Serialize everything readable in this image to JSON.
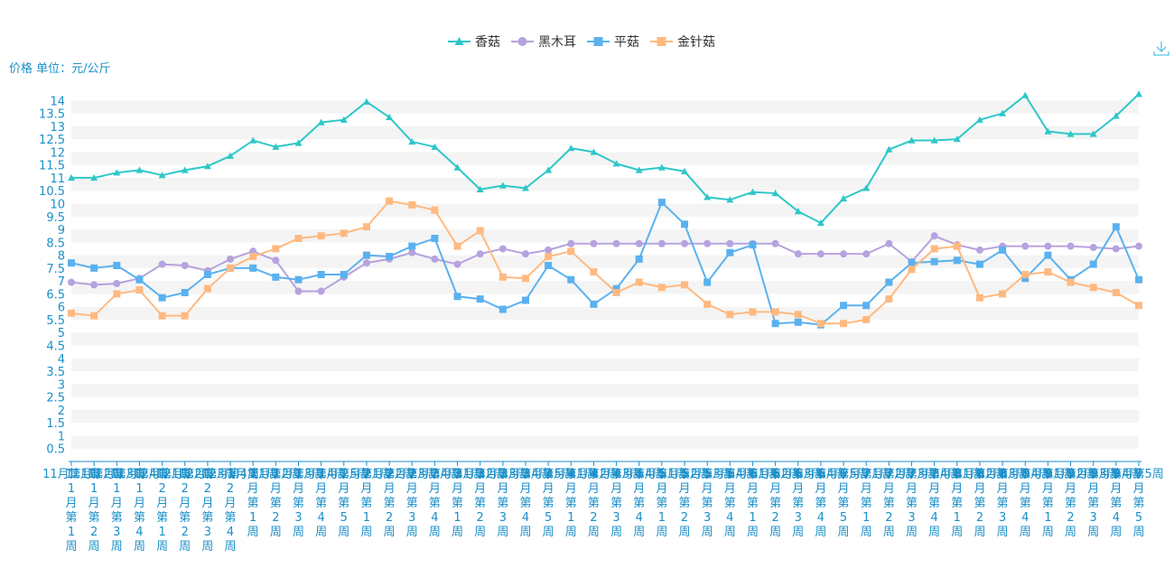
{
  "toolbar": {
    "download_icon": "download-icon"
  },
  "chart_data": {
    "type": "line",
    "ylabel": "价格 单位：元/公斤",
    "ylim": [
      0,
      14.5
    ],
    "y_ticks": [
      0.5,
      1,
      1.5,
      2,
      2.5,
      3,
      3.5,
      4,
      4.5,
      5,
      5.5,
      6,
      6.5,
      7,
      7.5,
      8,
      8.5,
      9,
      9.5,
      10,
      10.5,
      11,
      11.5,
      12,
      12.5,
      13,
      13.5,
      14
    ],
    "y_tick_labels": [
      "0.5",
      "1",
      "1.5",
      "2",
      "2.5",
      "3",
      "3.5",
      "4",
      "4.5",
      "5",
      "5.5",
      "6",
      "6.5",
      "7",
      "7.5",
      "8",
      "8.5",
      "9",
      "9.5",
      "10",
      "10.5",
      "11",
      "11.5",
      "12",
      "12.5",
      "13",
      "13.5",
      "14"
    ],
    "legend_position": "top-center",
    "grid": "alternating horizontal bands",
    "categories": [
      "11月第1周",
      "11月第2周",
      "11月第3周",
      "11月第4周",
      "12月第1周",
      "12月第2周",
      "12月第3周",
      "12月第4周",
      "1月第1周",
      "1月第2周",
      "1月第3周",
      "1月第4周",
      "1月第5周",
      "2月第1周",
      "2月第2周",
      "2月第3周",
      "2月第4周",
      "3月第1周",
      "3月第2周",
      "3月第3周",
      "3月第4周",
      "3月第5周",
      "4月第1周",
      "4月第2周",
      "4月第3周",
      "4月第4周",
      "5月第1周",
      "5月第2周",
      "5月第3周",
      "5月第4周",
      "6月第1周",
      "6月第2周",
      "6月第3周",
      "6月第4周",
      "6月第5周",
      "7月第1周",
      "7月第2周",
      "7月第3周",
      "7月第4周",
      "8月第1周",
      "8月第2周",
      "8月第3周",
      "8月第4周",
      "9月第1周",
      "9月第2周",
      "9月第3周",
      "9月第4周",
      "9月第5周"
    ],
    "series": [
      {
        "name": "香菇",
        "color": "#2ec7c9",
        "marker": "triangle",
        "values": [
          11,
          11,
          11.2,
          11.3,
          11.1,
          11.3,
          11.45,
          11.85,
          12.45,
          12.2,
          12.35,
          13.15,
          13.25,
          13.95,
          13.35,
          12.4,
          12.2,
          11.4,
          10.55,
          10.7,
          10.6,
          11.3,
          12.15,
          12,
          11.55,
          11.3,
          11.4,
          11.25,
          10.25,
          10.15,
          10.45,
          10.4,
          9.7,
          9.25,
          10.2,
          10.6,
          12.1,
          12.45,
          12.45,
          12.5,
          13.25,
          13.5,
          14.2,
          12.8,
          12.7,
          12.7,
          13.4,
          14.25
        ]
      },
      {
        "name": "黑木耳",
        "color": "#b6a2de",
        "marker": "circle",
        "values": [
          6.95,
          6.85,
          6.9,
          7.1,
          7.65,
          7.6,
          7.4,
          7.85,
          8.15,
          7.8,
          6.6,
          6.6,
          7.15,
          7.7,
          7.85,
          8.1,
          7.85,
          7.65,
          8.05,
          8.25,
          8.05,
          8.2,
          8.45,
          8.45,
          8.45,
          8.45,
          8.45,
          8.45,
          8.45,
          8.45,
          8.45,
          8.45,
          8.05,
          8.05,
          8.05,
          8.05,
          8.45,
          7.75,
          8.75,
          8.4,
          8.2,
          8.35,
          8.35,
          8.35,
          8.35,
          8.3,
          8.25,
          8.35
        ]
      },
      {
        "name": "平菇",
        "color": "#5ab1ef",
        "marker": "square",
        "values": [
          7.7,
          7.5,
          7.6,
          7.05,
          6.35,
          6.55,
          7.25,
          7.5,
          7.5,
          7.15,
          7.05,
          7.25,
          7.25,
          8,
          7.95,
          8.35,
          8.65,
          6.4,
          6.3,
          5.9,
          6.25,
          7.6,
          7.05,
          6.1,
          6.7,
          7.85,
          10.05,
          9.2,
          6.95,
          8.1,
          8.4,
          5.35,
          5.4,
          5.3,
          6.05,
          6.05,
          6.95,
          7.7,
          7.75,
          7.8,
          7.65,
          8.2,
          7.1,
          8,
          7.05,
          7.65,
          9.1,
          7.05
        ]
      },
      {
        "name": "金针菇",
        "color": "#ffb980",
        "marker": "square",
        "values": [
          5.75,
          5.65,
          6.5,
          6.65,
          5.65,
          5.65,
          6.7,
          7.5,
          7.95,
          8.25,
          8.65,
          8.75,
          8.85,
          9.1,
          10.1,
          9.95,
          9.75,
          8.35,
          8.95,
          7.15,
          7.1,
          7.95,
          8.15,
          7.35,
          6.55,
          6.95,
          6.75,
          6.85,
          6.1,
          5.7,
          5.8,
          5.8,
          5.7,
          5.35,
          5.35,
          5.5,
          6.3,
          7.45,
          8.25,
          8.35,
          6.35,
          6.5,
          7.25,
          7.35,
          6.95,
          6.75,
          6.55,
          6.05
        ]
      }
    ]
  }
}
